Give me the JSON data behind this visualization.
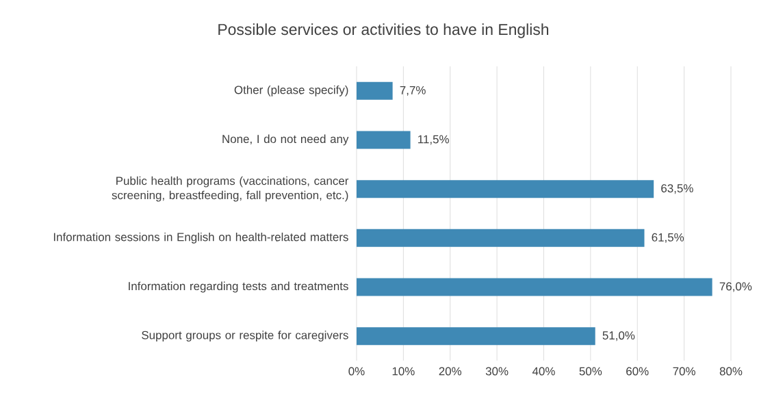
{
  "chart_data": {
    "type": "bar",
    "orientation": "horizontal",
    "title": "Possible services or activities to have in English",
    "categories": [
      "Other (please specify)",
      "None, I do not need any",
      "Public health programs (vaccinations, cancer screening, breastfeeding, fall prevention, etc.)",
      "Information sessions in English on health-related matters",
      "Information regarding tests and treatments",
      "Support groups or respite for caregivers"
    ],
    "values": [
      7.7,
      11.5,
      63.5,
      61.5,
      76.0,
      51.0
    ],
    "value_labels": [
      "7,7%",
      "11,5%",
      "63,5%",
      "61,5%",
      "76,0%",
      "51,0%"
    ],
    "color": "#3f89b5",
    "xlim": [
      0,
      80
    ],
    "xticks": [
      {
        "value": 0,
        "label": "0%"
      },
      {
        "value": 10,
        "label": "10%"
      },
      {
        "value": 20,
        "label": "20%"
      },
      {
        "value": 30,
        "label": "30%"
      },
      {
        "value": 40,
        "label": "40%"
      },
      {
        "value": 50,
        "label": "50%"
      },
      {
        "value": 60,
        "label": "60%"
      },
      {
        "value": 70,
        "label": "70%"
      },
      {
        "value": 80,
        "label": "80%"
      }
    ],
    "grid": "x"
  }
}
